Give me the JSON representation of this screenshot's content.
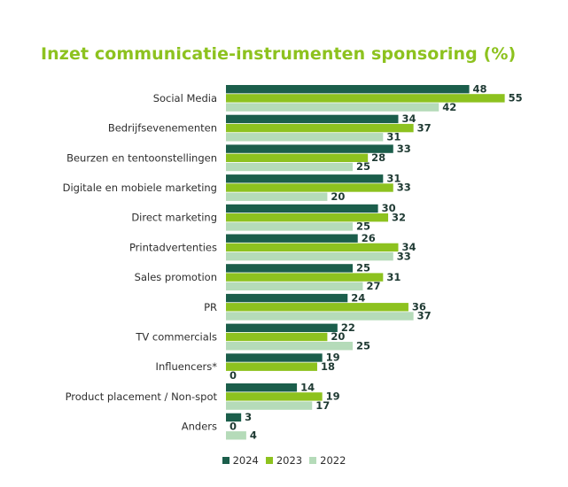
{
  "title": "Inzet communicatie-instrumenten sponsoring (%)",
  "chart_data": {
    "type": "bar",
    "orientation": "horizontal",
    "title": "Inzet communicatie-instrumenten sponsoring (%)",
    "categories": [
      "Social Media",
      "Bedrijfsevenementen",
      "Beurzen en tentoonstellingen",
      "Digitale en mobiele marketing",
      "Direct marketing",
      "Printadvertenties",
      "Sales promotion",
      "PR",
      "TV commercials",
      "Influencers*",
      "Product placement / Non-spot",
      "Anders"
    ],
    "series": [
      {
        "name": "2024",
        "color": "#1b5e4b",
        "values": [
          48,
          34,
          33,
          31,
          30,
          26,
          25,
          24,
          22,
          19,
          14,
          3
        ]
      },
      {
        "name": "2023",
        "color": "#8dc21f",
        "values": [
          55,
          37,
          28,
          33,
          32,
          34,
          31,
          36,
          20,
          18,
          19,
          0
        ]
      },
      {
        "name": "2022",
        "color": "#b5dbb9",
        "values": [
          42,
          31,
          25,
          20,
          25,
          33,
          27,
          37,
          25,
          0,
          17,
          4
        ]
      }
    ],
    "xlim": [
      0,
      55
    ],
    "grid": false,
    "legend_position": "bottom-center"
  }
}
